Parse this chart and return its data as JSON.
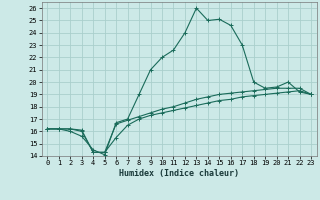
{
  "xlabel": "Humidex (Indice chaleur)",
  "bg_color": "#cce9e7",
  "grid_color": "#aacfcc",
  "line_color": "#1a6b5a",
  "xlim": [
    -0.5,
    23.5
  ],
  "ylim": [
    14,
    26.5
  ],
  "xticks": [
    0,
    1,
    2,
    3,
    4,
    5,
    6,
    7,
    8,
    9,
    10,
    11,
    12,
    13,
    14,
    15,
    16,
    17,
    18,
    19,
    20,
    21,
    22,
    23
  ],
  "yticks": [
    14,
    15,
    16,
    17,
    18,
    19,
    20,
    21,
    22,
    23,
    24,
    25,
    26
  ],
  "line1_x": [
    0,
    1,
    2,
    3,
    4,
    5,
    6,
    7,
    8,
    9,
    10,
    11,
    12,
    13,
    14,
    15,
    16,
    17,
    18,
    19,
    20,
    21,
    22,
    23
  ],
  "line1_y": [
    16.2,
    16.2,
    16.0,
    15.6,
    14.5,
    14.1,
    16.7,
    17.0,
    19.0,
    21.0,
    22.0,
    22.6,
    24.0,
    26.0,
    25.0,
    25.1,
    24.6,
    23.0,
    20.0,
    19.5,
    19.6,
    20.0,
    19.2,
    19.0
  ],
  "line2_x": [
    0,
    1,
    2,
    3,
    4,
    5,
    6,
    7,
    8,
    9,
    10,
    11,
    12,
    13,
    14,
    15,
    16,
    17,
    18,
    19,
    20,
    21,
    22,
    23
  ],
  "line2_y": [
    16.2,
    16.2,
    16.2,
    16.0,
    14.3,
    14.3,
    15.5,
    16.5,
    17.0,
    17.3,
    17.5,
    17.7,
    17.9,
    18.1,
    18.3,
    18.5,
    18.6,
    18.8,
    18.9,
    19.0,
    19.1,
    19.2,
    19.3,
    19.0
  ],
  "line3_x": [
    0,
    1,
    2,
    3,
    4,
    5,
    6,
    7,
    8,
    9,
    10,
    11,
    12,
    13,
    14,
    15,
    16,
    17,
    18,
    19,
    20,
    21,
    22,
    23
  ],
  "line3_y": [
    16.2,
    16.2,
    16.2,
    16.1,
    14.3,
    14.3,
    16.6,
    16.9,
    17.2,
    17.5,
    17.8,
    18.0,
    18.3,
    18.6,
    18.8,
    19.0,
    19.1,
    19.2,
    19.3,
    19.4,
    19.5,
    19.5,
    19.5,
    19.0
  ],
  "tick_fontsize": 5,
  "xlabel_fontsize": 6
}
